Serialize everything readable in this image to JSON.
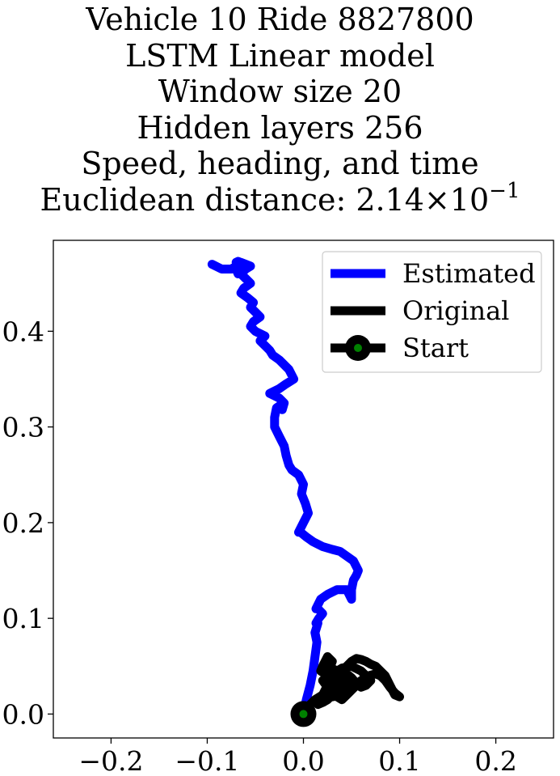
{
  "title": {
    "line1": "Vehicle 10 Ride 8827800",
    "line2": "LSTM Linear model",
    "line3": "Window size 20",
    "line4": "Hidden layers 256",
    "line5": "Speed, heading, and time",
    "line6_prefix": "Euclidean distance: 2.14×10",
    "line6_exponent": "−1"
  },
  "chart_data": {
    "type": "line",
    "title": "Vehicle 10 Ride 8827800 / LSTM Linear model / Window size 20 / Hidden layers 256 / Speed, heading, and time / Euclidean distance: 2.14×10^-1",
    "xlabel": "",
    "ylabel": "",
    "xlim": [
      -0.26,
      0.26
    ],
    "ylim": [
      -0.025,
      0.495
    ],
    "xticks": [
      -0.2,
      -0.1,
      0.0,
      0.1,
      0.2
    ],
    "xtick_labels": [
      "−0.2",
      "−0.1",
      "0.0",
      "0.1",
      "0.2"
    ],
    "yticks": [
      0.0,
      0.1,
      0.2,
      0.3,
      0.4
    ],
    "ytick_labels": [
      "0.0",
      "0.1",
      "0.2",
      "0.3",
      "0.4"
    ],
    "grid": false,
    "legend_position": "top-right",
    "series": [
      {
        "name": "Estimated",
        "color": "#0000ff",
        "x": [
          0.0,
          0.003,
          0.007,
          0.01,
          0.012,
          0.014,
          0.012,
          0.015,
          0.013,
          0.016,
          0.02,
          0.015,
          0.013,
          0.018,
          0.025,
          0.035,
          0.045,
          0.05,
          0.05,
          0.052,
          0.055,
          0.057,
          0.052,
          0.045,
          0.038,
          0.03,
          0.02,
          0.01,
          0.003,
          -0.003,
          -0.005,
          0.0,
          0.005,
          0.002,
          -0.002,
          0.0,
          -0.005,
          -0.012,
          -0.015,
          -0.018,
          -0.02,
          -0.025,
          -0.03,
          -0.03,
          -0.028,
          -0.025,
          -0.022,
          -0.02,
          -0.025,
          -0.035,
          -0.025,
          -0.018,
          -0.01,
          -0.015,
          -0.025,
          -0.032,
          -0.035,
          -0.04,
          -0.045,
          -0.04,
          -0.05,
          -0.055,
          -0.052,
          -0.045,
          -0.05,
          -0.055,
          -0.052,
          -0.058,
          -0.065,
          -0.062,
          -0.055,
          -0.06,
          -0.065,
          -0.06,
          -0.055,
          -0.065,
          -0.07,
          -0.068,
          -0.065,
          -0.07,
          -0.068,
          -0.06,
          -0.07,
          -0.075,
          -0.085,
          -0.095
        ],
        "y": [
          0.0,
          0.015,
          0.03,
          0.045,
          0.06,
          0.075,
          0.085,
          0.095,
          0.095,
          0.1,
          0.105,
          0.11,
          0.11,
          0.12,
          0.125,
          0.13,
          0.13,
          0.12,
          0.13,
          0.14,
          0.145,
          0.15,
          0.16,
          0.165,
          0.17,
          0.172,
          0.175,
          0.18,
          0.185,
          0.19,
          0.19,
          0.2,
          0.21,
          0.22,
          0.23,
          0.24,
          0.25,
          0.255,
          0.26,
          0.27,
          0.28,
          0.29,
          0.3,
          0.31,
          0.32,
          0.322,
          0.318,
          0.325,
          0.33,
          0.335,
          0.34,
          0.345,
          0.35,
          0.36,
          0.37,
          0.375,
          0.38,
          0.385,
          0.39,
          0.395,
          0.4,
          0.405,
          0.41,
          0.415,
          0.42,
          0.425,
          0.43,
          0.435,
          0.44,
          0.445,
          0.45,
          0.455,
          0.46,
          0.465,
          0.468,
          0.472,
          0.465,
          0.46,
          0.468,
          0.472,
          0.473,
          0.47,
          0.468,
          0.465,
          0.465,
          0.47
        ]
      },
      {
        "name": "Original",
        "color": "#000000",
        "x": [
          0.0,
          0.005,
          0.012,
          0.02,
          0.028,
          0.035,
          0.03,
          0.025,
          0.035,
          0.045,
          0.05,
          0.04,
          0.03,
          0.02,
          0.025,
          0.035,
          0.045,
          0.05,
          0.055,
          0.06,
          0.065,
          0.07,
          0.075,
          0.08,
          0.085,
          0.09,
          0.095,
          0.1,
          0.095,
          0.09,
          0.085,
          0.08,
          0.075,
          0.068,
          0.06,
          0.055,
          0.05,
          0.045,
          0.04,
          0.035,
          0.03,
          0.025,
          0.02,
          0.03,
          0.04,
          0.05,
          0.06,
          0.065,
          0.07,
          0.065,
          0.06,
          0.055,
          0.05,
          0.045,
          0.04,
          0.035,
          0.03,
          0.025,
          0.03,
          0.035,
          0.03,
          0.025,
          0.02,
          0.015,
          0.022,
          0.03,
          0.038,
          0.045,
          0.04,
          0.035,
          0.03,
          0.028,
          0.03,
          0.025,
          0.02,
          0.018,
          0.025,
          0.032,
          0.03
        ],
        "y": [
          0.0,
          0.008,
          0.015,
          0.02,
          0.025,
          0.03,
          0.04,
          0.05,
          0.045,
          0.035,
          0.025,
          0.02,
          0.018,
          0.02,
          0.03,
          0.04,
          0.05,
          0.055,
          0.058,
          0.057,
          0.055,
          0.052,
          0.05,
          0.045,
          0.04,
          0.03,
          0.02,
          0.018,
          0.022,
          0.028,
          0.035,
          0.04,
          0.042,
          0.04,
          0.035,
          0.03,
          0.025,
          0.02,
          0.015,
          0.018,
          0.022,
          0.028,
          0.035,
          0.042,
          0.048,
          0.05,
          0.045,
          0.04,
          0.035,
          0.03,
          0.028,
          0.032,
          0.038,
          0.042,
          0.045,
          0.043,
          0.04,
          0.035,
          0.03,
          0.025,
          0.02,
          0.015,
          0.012,
          0.01,
          0.018,
          0.025,
          0.028,
          0.032,
          0.035,
          0.04,
          0.045,
          0.05,
          0.055,
          0.06,
          0.05,
          0.045,
          0.04,
          0.035,
          0.03
        ]
      }
    ],
    "start_point": {
      "name": "Start",
      "x": 0.0,
      "y": 0.0,
      "marker_color": "#000000",
      "inner_color": "#008000"
    }
  }
}
